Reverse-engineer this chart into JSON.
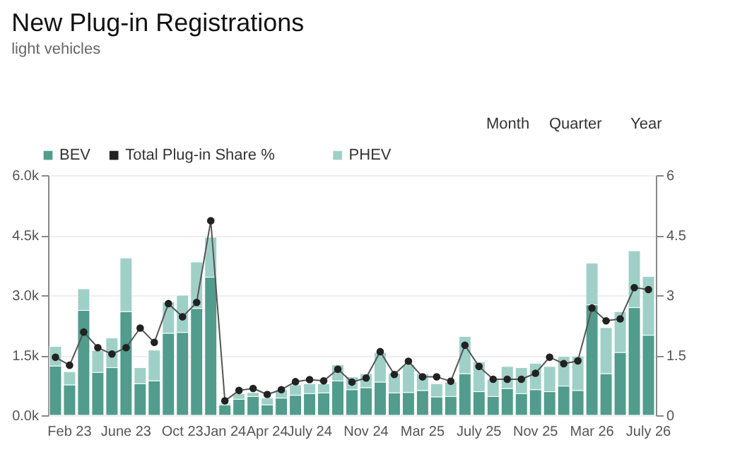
{
  "chart_data": {
    "type": "bar",
    "title": "New Plug-in Registrations",
    "subtitle": "light vehicles",
    "categories": [
      null,
      "Feb 23",
      null,
      null,
      null,
      "June 23",
      null,
      null,
      null,
      "Oct 23",
      null,
      null,
      "Jan 24",
      null,
      null,
      "Apr 24",
      null,
      null,
      "July 24",
      null,
      null,
      null,
      "Nov 24",
      null,
      null,
      null,
      "Mar 25",
      null,
      null,
      null,
      "July 25",
      null,
      null,
      null,
      "Nov 25",
      null,
      null,
      null,
      "Mar 26",
      null,
      null,
      null,
      "July 26"
    ],
    "stacked": true,
    "series": [
      {
        "name": "BEV",
        "color": "#519c8c",
        "values": [
          1230,
          760,
          2620,
          1070,
          1190,
          2590,
          790,
          860,
          2050,
          2070,
          2670,
          3450,
          260,
          400,
          470,
          260,
          430,
          500,
          540,
          560,
          860,
          640,
          690,
          830,
          560,
          570,
          620,
          460,
          470,
          1040,
          590,
          470,
          670,
          540,
          640,
          590,
          730,
          620,
          2760,
          1040,
          1570,
          2690,
          2000
        ]
      },
      {
        "name": "Total Plug-in Share %",
        "type": "line",
        "axis": "y2",
        "color": "#222222",
        "values": [
          1.45,
          1.25,
          2.08,
          1.69,
          1.53,
          1.69,
          2.18,
          1.82,
          2.79,
          2.46,
          2.82,
          4.86,
          0.36,
          0.62,
          0.67,
          0.52,
          0.64,
          0.84,
          0.89,
          0.86,
          1.15,
          0.83,
          0.93,
          1.59,
          1.02,
          1.35,
          0.96,
          0.96,
          0.85,
          1.75,
          1.22,
          0.9,
          0.9,
          0.9,
          1.05,
          1.45,
          1.29,
          1.36,
          2.68,
          2.36,
          2.41,
          3.19,
          3.14
        ]
      },
      {
        "name": "PHEV",
        "color": "#9fd0c8",
        "values": [
          490,
          330,
          540,
          550,
          740,
          1340,
          400,
          770,
          780,
          930,
          1160,
          1000,
          40,
          140,
          100,
          170,
          210,
          260,
          250,
          230,
          400,
          320,
          350,
          740,
          490,
          690,
          420,
          330,
          360,
          930,
          740,
          430,
          550,
          650,
          660,
          630,
          740,
          860,
          1040,
          1150,
          1020,
          1420,
          1470
        ]
      }
    ],
    "ylim": [
      0,
      6000
    ],
    "yticks": [
      {
        "value": 0,
        "label": "0.0k"
      },
      {
        "value": 1500,
        "label": "1.5k"
      },
      {
        "value": 3000,
        "label": "3.0k"
      },
      {
        "value": 4500,
        "label": "4.5k"
      },
      {
        "value": 6000,
        "label": "6.0k"
      }
    ],
    "y2lim": [
      0,
      6
    ],
    "y2ticks": [
      0,
      1.5,
      3,
      4.5,
      6
    ],
    "grid": "y",
    "legend": "top left",
    "marker": "circle",
    "line_style": "solid",
    "annotations": [
      "Month",
      "Quarter",
      "Year"
    ]
  }
}
